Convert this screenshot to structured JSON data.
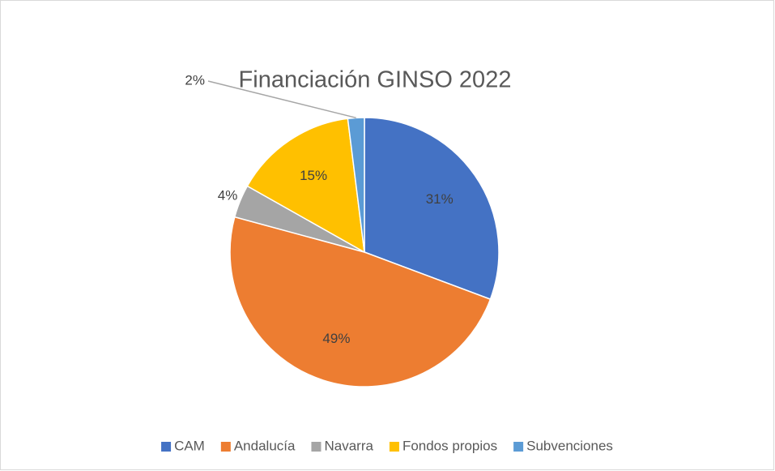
{
  "chart_data": {
    "type": "pie",
    "title": "Financiación GINSO 2022",
    "categories": [
      "CAM",
      "Andalucía",
      "Navarra",
      "Fondos propios",
      "Subvenciones"
    ],
    "values": [
      31,
      49,
      4,
      15,
      2
    ],
    "value_labels": [
      "31%",
      "49%",
      "4%",
      "15%",
      "2%"
    ],
    "colors": [
      "#4472c4",
      "#ed7d31",
      "#a5a5a5",
      "#ffc000",
      "#5b9bd5"
    ],
    "legend": "bottom"
  }
}
